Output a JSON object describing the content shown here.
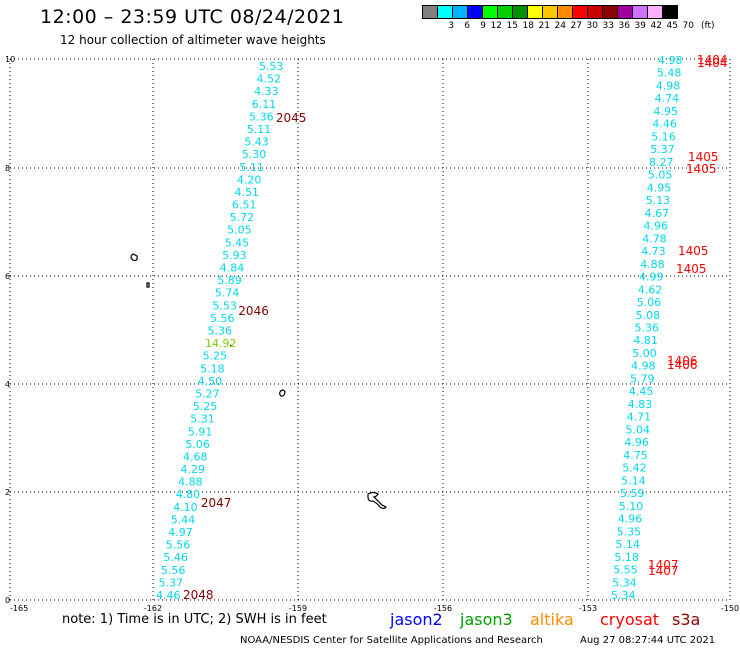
{
  "header": {
    "title": "12:00 – 23:59 UTC 08/24/2021",
    "subtitle": "12 hour collection of altimeter wave heights"
  },
  "colorbar": {
    "colors": [
      "#808080",
      "#00ffff",
      "#00b0ff",
      "#0000ff",
      "#00ff00",
      "#00d000",
      "#009000",
      "#ffff00",
      "#ffc800",
      "#ff8c00",
      "#ff0000",
      "#c80000",
      "#900000",
      "#a000a0",
      "#d070ff",
      "#ffb0ff",
      "#000000"
    ],
    "labels": [
      "",
      "3",
      "6",
      "9",
      "12",
      "15",
      "18",
      "21",
      "24",
      "27",
      "30",
      "33",
      "36",
      "39",
      "42",
      "45",
      "70"
    ],
    "unit": "(ft)"
  },
  "colors": {
    "normal": "#00d8e8",
    "high": "#7ccd00",
    "track_labels_a": "#800000",
    "track_labels_b": "#ff0000",
    "grid": "#000000"
  },
  "axes": {
    "x_ticks": [
      "-165",
      "-162",
      "-159",
      "-156",
      "-153",
      "-150"
    ],
    "y_ticks": [
      "0",
      "2",
      "4",
      "6",
      "8",
      "10"
    ]
  },
  "track_west": {
    "label_color_key": "track_labels_a",
    "values": [
      "5.53",
      "4.52",
      "4.33",
      "6.11",
      "5.36",
      "5.11",
      "5.43",
      "5.30",
      "5.11",
      "4.20",
      "4.51",
      "6.51",
      "5.72",
      "5.05",
      "5.45",
      "5.93",
      "4.84",
      "5.89",
      "5.74",
      "5.53",
      "5.56",
      "5.36",
      "14.92",
      "5.25",
      "5.18",
      "4.50",
      "5.27",
      "5.25",
      "5.31",
      "5.91",
      "5.06",
      "4.68",
      "4.29",
      "4.88",
      "4.80",
      "4.10",
      "5.44",
      "4.97",
      "5.56",
      "5.46",
      "5.56",
      "5.37",
      "4.46"
    ],
    "time_labels": [
      "2045",
      "2046",
      "2047",
      "2048"
    ]
  },
  "track_east": {
    "values": [
      "4.98",
      "5.48",
      "4.98",
      "4.74",
      "4.95",
      "4.46",
      "5.16",
      "5.37",
      "8.27",
      "5.05",
      "4.95",
      "5.13",
      "4.67",
      "4.96",
      "4.78",
      "4.73",
      "4.88",
      "4.99",
      "4.62",
      "5.06",
      "5.08",
      "5.36",
      "4.81",
      "5.00",
      "4.98",
      "5.79",
      "4.45",
      "4.83",
      "4.71",
      "5.04",
      "4.96",
      "4.75",
      "5.42",
      "5.14",
      "5.59",
      "5.10",
      "4.96",
      "5.35",
      "5.14",
      "5.18",
      "5.55",
      "5.34",
      "5.34"
    ],
    "time_labels": [
      "1404",
      "1404",
      "1405",
      "1405",
      "1405",
      "1405",
      "1406",
      "1406",
      "1407",
      "1407"
    ]
  },
  "footer": {
    "note": "note:  1) Time is in UTC;  2) SWH is in feet",
    "legend": [
      {
        "name": "jason2",
        "color": "#0000ff"
      },
      {
        "name": "jason3",
        "color": "#00a000"
      },
      {
        "name": "altika",
        "color": "#ff8c00"
      },
      {
        "name": "cryosat",
        "color": "#ff0000"
      },
      {
        "name": "s3a",
        "color": "#900000"
      }
    ],
    "credit": "NOAA/NESDIS Center for Satellite Applications and Research",
    "stamp": "Aug 27 08:27:44 UTC 2021"
  }
}
